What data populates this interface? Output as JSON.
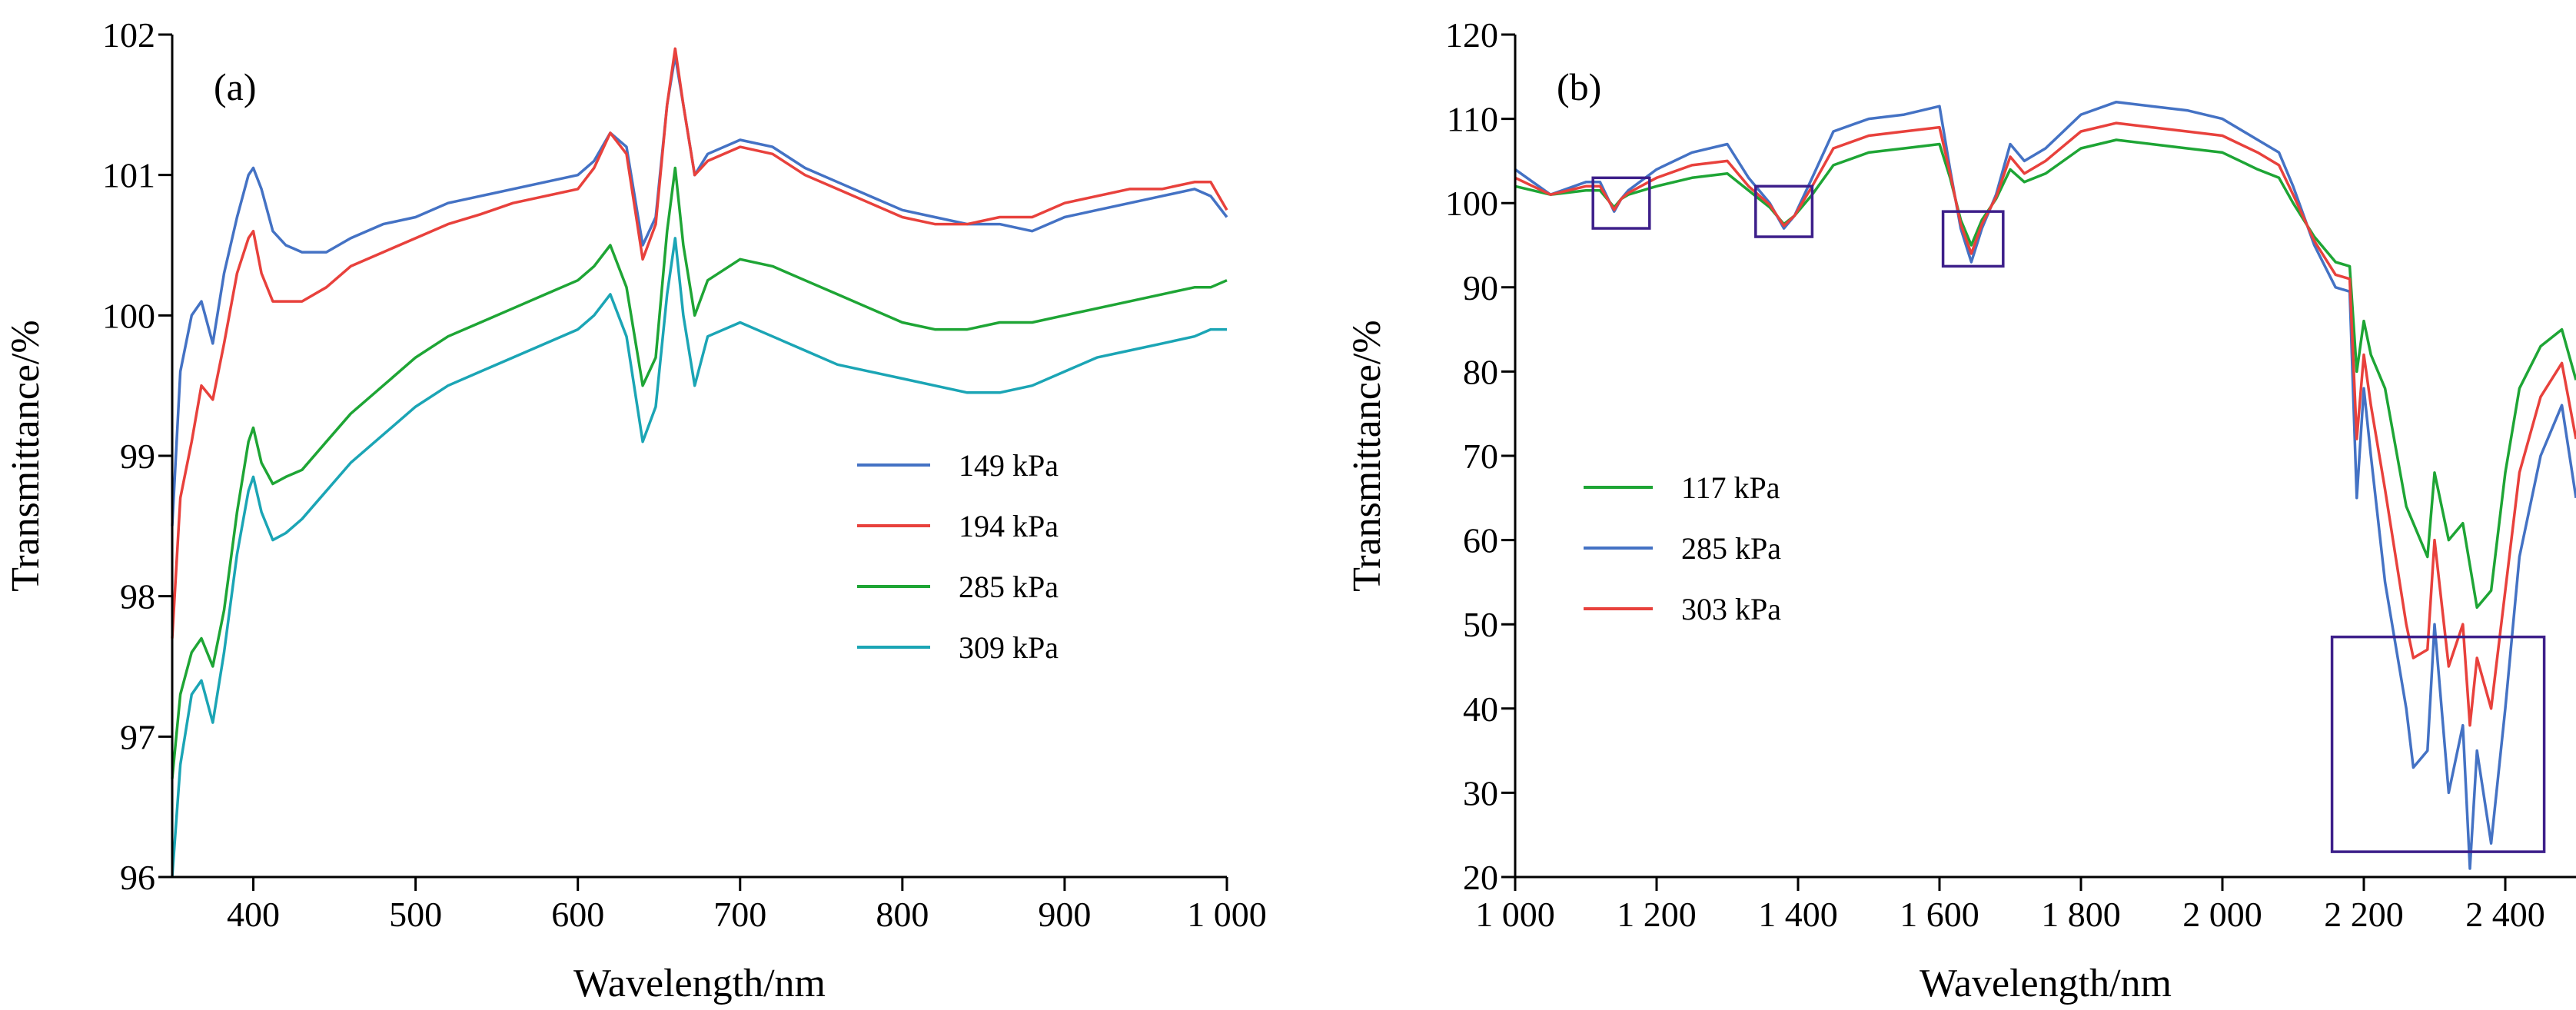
{
  "chart_data": [
    {
      "panel_label": "(a)",
      "type": "line",
      "xlabel": "Wavelength/nm",
      "ylabel": "Transmittance/%",
      "xlim": [
        350,
        1000
      ],
      "ylim": [
        96,
        102
      ],
      "xticks": [
        400,
        500,
        600,
        700,
        800,
        900,
        1000
      ],
      "xtick_labels": [
        "400",
        "500",
        "600",
        "700",
        "800",
        "900",
        "1 000"
      ],
      "yticks": [
        96,
        97,
        98,
        99,
        100,
        101,
        102
      ],
      "ytick_labels": [
        "96",
        "97",
        "98",
        "99",
        "100",
        "101",
        "102"
      ],
      "legend_position": "center-right",
      "grid": false,
      "series": [
        {
          "name": "149 kPa",
          "color": "#4472c4",
          "x": [
            350,
            355,
            362,
            368,
            375,
            382,
            390,
            397,
            400,
            405,
            412,
            420,
            430,
            445,
            460,
            480,
            500,
            520,
            540,
            560,
            580,
            600,
            610,
            620,
            630,
            640,
            648,
            655,
            660,
            665,
            672,
            680,
            700,
            720,
            740,
            760,
            780,
            800,
            820,
            840,
            860,
            880,
            900,
            920,
            940,
            960,
            980,
            990,
            1000
          ],
          "y": [
            98.5,
            99.6,
            100.0,
            100.1,
            99.8,
            100.3,
            100.7,
            101.0,
            101.05,
            100.9,
            100.6,
            100.5,
            100.45,
            100.45,
            100.55,
            100.65,
            100.7,
            100.8,
            100.85,
            100.9,
            100.95,
            101.0,
            101.1,
            101.3,
            101.2,
            100.5,
            100.7,
            101.5,
            101.85,
            101.5,
            101.0,
            101.15,
            101.25,
            101.2,
            101.05,
            100.95,
            100.85,
            100.75,
            100.7,
            100.65,
            100.65,
            100.6,
            100.7,
            100.75,
            100.8,
            100.85,
            100.9,
            100.85,
            100.7
          ]
        },
        {
          "name": "194 kPa",
          "color": "#e8413c",
          "x": [
            350,
            355,
            362,
            368,
            375,
            382,
            390,
            397,
            400,
            405,
            412,
            420,
            430,
            445,
            460,
            480,
            500,
            520,
            540,
            560,
            580,
            600,
            610,
            620,
            630,
            640,
            648,
            655,
            660,
            665,
            672,
            680,
            700,
            720,
            740,
            760,
            780,
            800,
            820,
            840,
            860,
            880,
            900,
            920,
            940,
            960,
            980,
            990,
            1000
          ],
          "y": [
            97.7,
            98.7,
            99.1,
            99.5,
            99.4,
            99.8,
            100.3,
            100.55,
            100.6,
            100.3,
            100.1,
            100.1,
            100.1,
            100.2,
            100.35,
            100.45,
            100.55,
            100.65,
            100.72,
            100.8,
            100.85,
            100.9,
            101.05,
            101.3,
            101.15,
            100.4,
            100.65,
            101.5,
            101.9,
            101.5,
            101.0,
            101.1,
            101.2,
            101.15,
            101.0,
            100.9,
            100.8,
            100.7,
            100.65,
            100.65,
            100.7,
            100.7,
            100.8,
            100.85,
            100.9,
            100.9,
            100.95,
            100.95,
            100.75
          ]
        },
        {
          "name": "285 kPa",
          "color": "#1ea535",
          "x": [
            350,
            355,
            362,
            368,
            375,
            382,
            390,
            397,
            400,
            405,
            412,
            420,
            430,
            445,
            460,
            480,
            500,
            520,
            540,
            560,
            580,
            600,
            610,
            620,
            630,
            640,
            648,
            655,
            660,
            665,
            672,
            680,
            700,
            720,
            740,
            760,
            780,
            800,
            820,
            840,
            860,
            880,
            900,
            920,
            940,
            960,
            980,
            990,
            1000
          ],
          "y": [
            96.7,
            97.3,
            97.6,
            97.7,
            97.5,
            97.9,
            98.6,
            99.1,
            99.2,
            98.95,
            98.8,
            98.85,
            98.9,
            99.1,
            99.3,
            99.5,
            99.7,
            99.85,
            99.95,
            100.05,
            100.15,
            100.25,
            100.35,
            100.5,
            100.2,
            99.5,
            99.7,
            100.6,
            101.05,
            100.5,
            100.0,
            100.25,
            100.4,
            100.35,
            100.25,
            100.15,
            100.05,
            99.95,
            99.9,
            99.9,
            99.95,
            99.95,
            100.0,
            100.05,
            100.1,
            100.15,
            100.2,
            100.2,
            100.25
          ]
        },
        {
          "name": "309 kPa",
          "color": "#1ba5b5",
          "x": [
            350,
            355,
            362,
            368,
            375,
            382,
            390,
            397,
            400,
            405,
            412,
            420,
            430,
            445,
            460,
            480,
            500,
            520,
            540,
            560,
            580,
            600,
            610,
            620,
            630,
            640,
            648,
            655,
            660,
            665,
            672,
            680,
            700,
            720,
            740,
            760,
            780,
            800,
            820,
            840,
            860,
            880,
            900,
            920,
            940,
            960,
            980,
            990,
            1000
          ],
          "y": [
            96.0,
            96.8,
            97.3,
            97.4,
            97.1,
            97.6,
            98.3,
            98.75,
            98.85,
            98.6,
            98.4,
            98.45,
            98.55,
            98.75,
            98.95,
            99.15,
            99.35,
            99.5,
            99.6,
            99.7,
            99.8,
            99.9,
            100.0,
            100.15,
            99.85,
            99.1,
            99.35,
            100.15,
            100.55,
            100.0,
            99.5,
            99.85,
            99.95,
            99.85,
            99.75,
            99.65,
            99.6,
            99.55,
            99.5,
            99.45,
            99.45,
            99.5,
            99.6,
            99.7,
            99.75,
            99.8,
            99.85,
            99.9,
            99.9
          ]
        }
      ]
    },
    {
      "panel_label": "(b)",
      "type": "line",
      "xlabel": "Wavelength/nm",
      "ylabel": "Transmittance/%",
      "xlim": [
        1000,
        2500
      ],
      "ylim": [
        20,
        120
      ],
      "xticks": [
        1000,
        1200,
        1400,
        1600,
        1800,
        2000,
        2200,
        2400
      ],
      "xtick_labels": [
        "1 000",
        "1 200",
        "1 400",
        "1 600",
        "1 800",
        "2 000",
        "2 200",
        "2 400"
      ],
      "yticks": [
        20,
        30,
        40,
        50,
        60,
        70,
        80,
        90,
        100,
        110,
        120
      ],
      "ytick_labels": [
        "20",
        "30",
        "40",
        "50",
        "60",
        "70",
        "80",
        "90",
        "100",
        "110",
        "120"
      ],
      "legend_position": "center-left",
      "grid": false,
      "highlight_boxes": [
        {
          "x": [
            1110,
            1190
          ],
          "y": [
            97,
            103
          ]
        },
        {
          "x": [
            1340,
            1420
          ],
          "y": [
            96,
            102
          ]
        },
        {
          "x": [
            1605,
            1690
          ],
          "y": [
            92.5,
            99
          ]
        },
        {
          "x": [
            2155,
            2455
          ],
          "y": [
            23,
            48.5
          ]
        }
      ],
      "series": [
        {
          "name": "117 kPa",
          "color": "#1ea535",
          "x": [
            1000,
            1050,
            1100,
            1120,
            1140,
            1150,
            1160,
            1200,
            1250,
            1300,
            1330,
            1360,
            1380,
            1395,
            1420,
            1450,
            1500,
            1550,
            1600,
            1615,
            1630,
            1645,
            1660,
            1680,
            1700,
            1720,
            1750,
            1800,
            1850,
            1900,
            1950,
            2000,
            2050,
            2080,
            2100,
            2130,
            2160,
            2180,
            2190,
            2200,
            2210,
            2230,
            2260,
            2270,
            2290,
            2300,
            2320,
            2340,
            2350,
            2360,
            2380,
            2400,
            2420,
            2450,
            2480,
            2500
          ],
          "y": [
            102,
            101,
            101.5,
            101.5,
            99.5,
            100.5,
            101,
            102,
            103,
            103.5,
            101.5,
            99.5,
            97.5,
            98.5,
            101,
            104.5,
            106,
            106.5,
            107,
            103,
            98,
            95,
            98,
            100.5,
            104,
            102.5,
            103.5,
            106.5,
            107.5,
            107,
            106.5,
            106,
            104,
            103,
            100,
            96,
            93,
            92.5,
            80,
            86,
            82,
            78,
            64,
            62,
            58,
            68,
            60,
            62,
            57,
            52,
            54,
            68,
            78,
            83,
            85,
            79
          ]
        },
        {
          "name": "285 kPa",
          "color": "#4472c4",
          "x": [
            1000,
            1050,
            1100,
            1120,
            1140,
            1150,
            1160,
            1200,
            1250,
            1300,
            1330,
            1360,
            1380,
            1395,
            1420,
            1450,
            1500,
            1550,
            1600,
            1615,
            1630,
            1645,
            1660,
            1680,
            1700,
            1720,
            1750,
            1800,
            1850,
            1900,
            1950,
            2000,
            2050,
            2080,
            2100,
            2130,
            2160,
            2180,
            2190,
            2200,
            2210,
            2230,
            2260,
            2270,
            2290,
            2300,
            2320,
            2340,
            2350,
            2360,
            2380,
            2400,
            2420,
            2450,
            2480,
            2500
          ],
          "y": [
            104,
            101,
            102.5,
            102.5,
            99,
            100.5,
            101.5,
            104,
            106,
            107,
            103,
            100,
            97,
            98.5,
            103,
            108.5,
            110,
            110.5,
            111.5,
            104,
            97,
            93,
            97,
            101,
            107,
            105,
            106.5,
            110.5,
            112,
            111.5,
            111,
            110,
            107.5,
            106,
            102,
            95,
            90,
            89.5,
            65,
            78,
            70,
            55,
            40,
            33,
            35,
            50,
            30,
            38,
            21,
            35,
            24,
            40,
            58,
            70,
            76,
            65
          ]
        },
        {
          "name": "303 kPa",
          "color": "#e8413c",
          "x": [
            1000,
            1050,
            1100,
            1120,
            1140,
            1150,
            1160,
            1200,
            1250,
            1300,
            1330,
            1360,
            1380,
            1395,
            1420,
            1450,
            1500,
            1550,
            1600,
            1615,
            1630,
            1645,
            1660,
            1680,
            1700,
            1720,
            1750,
            1800,
            1850,
            1900,
            1950,
            2000,
            2050,
            2080,
            2100,
            2130,
            2160,
            2180,
            2190,
            2200,
            2210,
            2230,
            2260,
            2270,
            2290,
            2300,
            2320,
            2340,
            2350,
            2360,
            2380,
            2400,
            2420,
            2450,
            2480,
            2500
          ],
          "y": [
            103,
            101,
            102,
            102,
            99.2,
            100.5,
            101.2,
            103,
            104.5,
            105,
            102,
            99.8,
            97.3,
            98.5,
            102,
            106.5,
            108,
            108.5,
            109,
            103.5,
            97.5,
            94,
            97.5,
            100.7,
            105.5,
            103.5,
            105,
            108.5,
            109.5,
            109,
            108.5,
            108,
            106,
            104.5,
            101,
            95.5,
            91.5,
            91,
            72,
            82,
            76,
            66,
            50,
            46,
            47,
            60,
            45,
            50,
            38,
            46,
            40,
            54,
            68,
            77,
            81,
            72
          ]
        }
      ]
    }
  ]
}
